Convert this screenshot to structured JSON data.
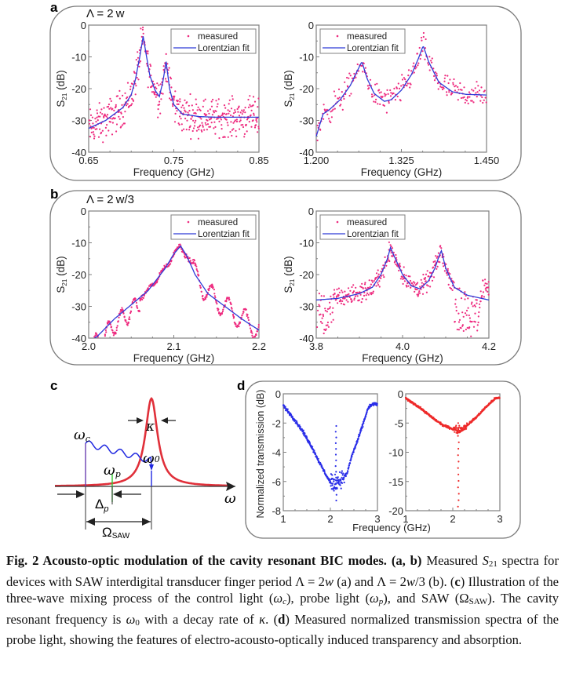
{
  "figure": {
    "panel_labels": {
      "a": "a",
      "b": "b",
      "c": "c",
      "d": "d"
    },
    "colors": {
      "measured": "#ee2b7f",
      "fit": "#2f3bd8",
      "frame": "#808080",
      "red_curve": "#e0303a",
      "blue_wave": "#1f27e0",
      "green_line": "#33cc33",
      "purple_line": "#6a3fb0",
      "d_blue": "#2a2ee8",
      "d_red": "#ee2a2a"
    }
  },
  "chart_data": [
    {
      "id": "a-left",
      "type": "scatter",
      "panel": "a",
      "annotation": "Λ = 2w",
      "xlabel": "Frequency (GHz)",
      "ylabel": "S21 (dB)",
      "xlim": [
        0.65,
        0.85
      ],
      "ylim": [
        -40,
        0
      ],
      "xticks": [
        0.65,
        0.75,
        0.85
      ],
      "xtick_labels": [
        "0.65",
        "0.75",
        "0.85"
      ],
      "yticks": [
        0,
        -10,
        -20,
        -30,
        -40
      ],
      "ytick_labels": [
        "0",
        "-10",
        "-20",
        "-30",
        "-40"
      ],
      "legend": {
        "position": "top-right",
        "entries": [
          "measured",
          "Lorentzian fit"
        ]
      },
      "series": [
        {
          "name": "Lorentzian fit",
          "kind": "line",
          "baseline": -29,
          "peaks": [
            {
              "x": 0.714,
              "y": -3.5,
              "width": 0.007
            },
            {
              "x": 0.741,
              "y": -11.5,
              "width": 0.004
            }
          ],
          "x": [
            0.65,
            0.67,
            0.69,
            0.7,
            0.705,
            0.71,
            0.714,
            0.718,
            0.722,
            0.728,
            0.733,
            0.737,
            0.741,
            0.745,
            0.75,
            0.76,
            0.78,
            0.8,
            0.85
          ],
          "y": [
            -32.5,
            -30,
            -26,
            -22,
            -17,
            -10,
            -3.5,
            -10,
            -16,
            -20.5,
            -22.5,
            -18,
            -11.5,
            -20,
            -25,
            -28,
            -28.8,
            -29,
            -29
          ]
        },
        {
          "name": "measured",
          "kind": "scatter",
          "noise_db": 5,
          "follows": "Lorentzian fit"
        }
      ]
    },
    {
      "id": "a-right",
      "type": "scatter",
      "panel": "a",
      "xlabel": "Frequency (GHz)",
      "ylabel": "S21 (dB)",
      "xlim": [
        1.2,
        1.45
      ],
      "ylim": [
        -40,
        0
      ],
      "xticks": [
        1.2,
        1.325,
        1.45
      ],
      "xtick_labels": [
        "1.200",
        "1.325",
        "1.450"
      ],
      "yticks": [
        0,
        -10,
        -20,
        -30,
        -40
      ],
      "ytick_labels": [
        "0",
        "-10",
        "-20",
        "-30",
        "-40"
      ],
      "legend": {
        "position": "top-left",
        "entries": [
          "measured",
          "Lorentzian fit"
        ]
      },
      "series": [
        {
          "name": "Lorentzian fit",
          "kind": "line",
          "x": [
            1.2,
            1.21,
            1.22,
            1.235,
            1.25,
            1.26,
            1.267,
            1.275,
            1.285,
            1.3,
            1.31,
            1.325,
            1.34,
            1.35,
            1.357,
            1.365,
            1.38,
            1.4,
            1.42,
            1.45
          ],
          "y": [
            -35,
            -28,
            -26.5,
            -23.5,
            -19,
            -14.5,
            -11.5,
            -17,
            -21.5,
            -24,
            -23.5,
            -20.5,
            -15.5,
            -10.5,
            -6.5,
            -11.5,
            -18,
            -21,
            -21.8,
            -22
          ]
        },
        {
          "name": "measured",
          "kind": "scatter",
          "noise_db": 3.5,
          "follows": "Lorentzian fit"
        }
      ]
    },
    {
      "id": "b-left",
      "type": "scatter",
      "panel": "b",
      "annotation": "Λ = 2w/3",
      "xlabel": "Frequency (GHz)",
      "ylabel": "S21 (dB)",
      "xlim": [
        2.0,
        2.2
      ],
      "ylim": [
        -40,
        0
      ],
      "xticks": [
        2.0,
        2.1,
        2.2
      ],
      "xtick_labels": [
        "2.0",
        "2.1",
        "2.2"
      ],
      "yticks": [
        0,
        -10,
        -20,
        -30,
        -40
      ],
      "ytick_labels": [
        "0",
        "-10",
        "-20",
        "-30",
        "-40"
      ],
      "legend": {
        "position": "top-right",
        "entries": [
          "measured",
          "Lorentzian fit"
        ]
      },
      "series": [
        {
          "name": "Lorentzian fit",
          "kind": "line",
          "x": [
            2.0,
            2.01,
            2.03,
            2.05,
            2.07,
            2.09,
            2.1,
            2.108,
            2.115,
            2.125,
            2.14,
            2.16,
            2.18,
            2.2
          ],
          "y": [
            -41,
            -39.5,
            -34,
            -29.5,
            -25,
            -18,
            -13.5,
            -11,
            -14,
            -20,
            -26,
            -30,
            -34,
            -37.5
          ]
        },
        {
          "name": "measured",
          "kind": "scatter",
          "noise_db": 2,
          "follows": "Lorentzian fit",
          "oscillating": true
        }
      ]
    },
    {
      "id": "b-right",
      "type": "scatter",
      "panel": "b",
      "xlabel": "Frequency (GHz)",
      "ylabel": "S21 (dB)",
      "xlim": [
        3.8,
        4.2
      ],
      "ylim": [
        -40,
        0
      ],
      "xticks": [
        3.8,
        4.0,
        4.2
      ],
      "xtick_labels": [
        "3.8",
        "4.0",
        "4.2"
      ],
      "yticks": [
        0,
        -10,
        -20,
        -30,
        -40
      ],
      "ytick_labels": [
        "0",
        "-10",
        "-20",
        "-30",
        "-40"
      ],
      "legend": {
        "position": "top-left",
        "entries": [
          "measured",
          "Lorentzian fit"
        ]
      },
      "series": [
        {
          "name": "Lorentzian fit",
          "kind": "line",
          "x": [
            3.8,
            3.85,
            3.9,
            3.93,
            3.95,
            3.965,
            3.972,
            3.98,
            4.0,
            4.02,
            4.04,
            4.06,
            4.075,
            4.085,
            4.09,
            4.1,
            4.12,
            4.15,
            4.2
          ],
          "y": [
            -28,
            -27.5,
            -26,
            -24,
            -20,
            -15,
            -11.5,
            -14,
            -20,
            -23.5,
            -24.5,
            -22,
            -18,
            -14,
            -12.5,
            -18,
            -24,
            -26.5,
            -28
          ]
        },
        {
          "name": "measured",
          "kind": "scatter",
          "noise_db": 2.5,
          "follows": "Lorentzian fit"
        }
      ]
    },
    {
      "id": "d-left",
      "type": "scatter",
      "panel": "d",
      "xlabel": "Frequency (GHz)",
      "ylabel": "Normalized transmission (dB)",
      "xlim": [
        1,
        3
      ],
      "ylim": [
        -8,
        0
      ],
      "xticks": [
        1,
        2,
        3
      ],
      "xtick_labels": [
        "1",
        "2",
        "3"
      ],
      "yticks": [
        0,
        -2,
        -4,
        -6,
        -8
      ],
      "ytick_labels": [
        "0",
        "-2",
        "-4",
        "-6",
        "-8"
      ],
      "series": [
        {
          "name": "transmission",
          "kind": "scatter",
          "x": [
            1.0,
            1.2,
            1.4,
            1.6,
            1.8,
            1.95,
            2.05,
            2.15,
            2.25,
            2.35,
            2.45,
            2.6,
            2.8,
            2.9,
            3.0
          ],
          "y": [
            -0.8,
            -1.6,
            -2.5,
            -3.6,
            -4.9,
            -5.8,
            -6.2,
            -6.0,
            -5.8,
            -5.5,
            -4.3,
            -3.0,
            -1.0,
            -0.7,
            -0.7
          ]
        },
        {
          "name": "transparency-spike",
          "kind": "scatter",
          "x": 2.12,
          "y_range": [
            -7.3,
            -2.2
          ]
        }
      ]
    },
    {
      "id": "d-right",
      "type": "scatter",
      "panel": "d",
      "xlabel": "Frequency (GHz)",
      "xlim": [
        1,
        3
      ],
      "ylim": [
        -20,
        0
      ],
      "xticks": [
        1,
        2,
        3
      ],
      "xtick_labels": [
        "1",
        "2",
        "3"
      ],
      "yticks": [
        0,
        -5,
        -10,
        -15,
        -20
      ],
      "ytick_labels": [
        "0",
        "-5",
        "-10",
        "-15",
        "-20"
      ],
      "series": [
        {
          "name": "transmission",
          "kind": "scatter",
          "x": [
            1.0,
            1.2,
            1.4,
            1.6,
            1.8,
            2.0,
            2.1,
            2.2,
            2.3,
            2.5,
            2.7,
            2.9,
            3.0
          ],
          "y": [
            -0.8,
            -1.8,
            -3.0,
            -4.3,
            -5.4,
            -6.0,
            -6.2,
            -6.0,
            -5.4,
            -4.0,
            -2.3,
            -0.8,
            -0.7
          ]
        },
        {
          "name": "absorption-dip",
          "kind": "scatter",
          "x": 2.12,
          "y_range": [
            -19.3,
            -5.0
          ]
        }
      ]
    }
  ],
  "diagram_c": {
    "labels": {
      "omega_c": "ω",
      "omega_c_sub": "c",
      "omega_p": "ω",
      "omega_p_sub": "p",
      "omega_0": "ω",
      "omega_0_sub": "0",
      "kappa": "κ",
      "omega_axis": "ω",
      "delta_p": "Δ",
      "delta_p_sub": "p",
      "omega_saw": "Ω",
      "omega_saw_sub": "SAW"
    }
  },
  "caption": {
    "title": "Fig. 2 Acousto-optic modulation of the cavity resonant BIC modes.",
    "ab_ref": "(a, b)",
    "t1": " Measured ",
    "s21_S": "S",
    "s21_sub": "21",
    "t2": " spectra for devices with SAW interdigital transducer finger period Λ = 2",
    "w1": "w",
    "t3": " (a) and Λ = 2",
    "w2": "w",
    "t4": "/3 (b). (",
    "c_ref": "c",
    "t5": ") Illustration of the three-wave mixing process of the control light (",
    "wc": "ω",
    "wc_sub": "c",
    "t6": "), probe light (",
    "wp": "ω",
    "wp_sub": "p",
    "t7": "), and SAW (Ω",
    "saw_sub": "SAW",
    "t8": "). The cavity resonant frequency is ",
    "w0": "ω",
    "w0_sub": "0",
    "t9": " with a decay rate of ",
    "kappa": "κ",
    "t10": ". (",
    "d_ref": "d",
    "t11": ") Measured normalized transmission spectra of the probe light, showing the features of electro-acousto-optically induced transparency and absorption."
  }
}
